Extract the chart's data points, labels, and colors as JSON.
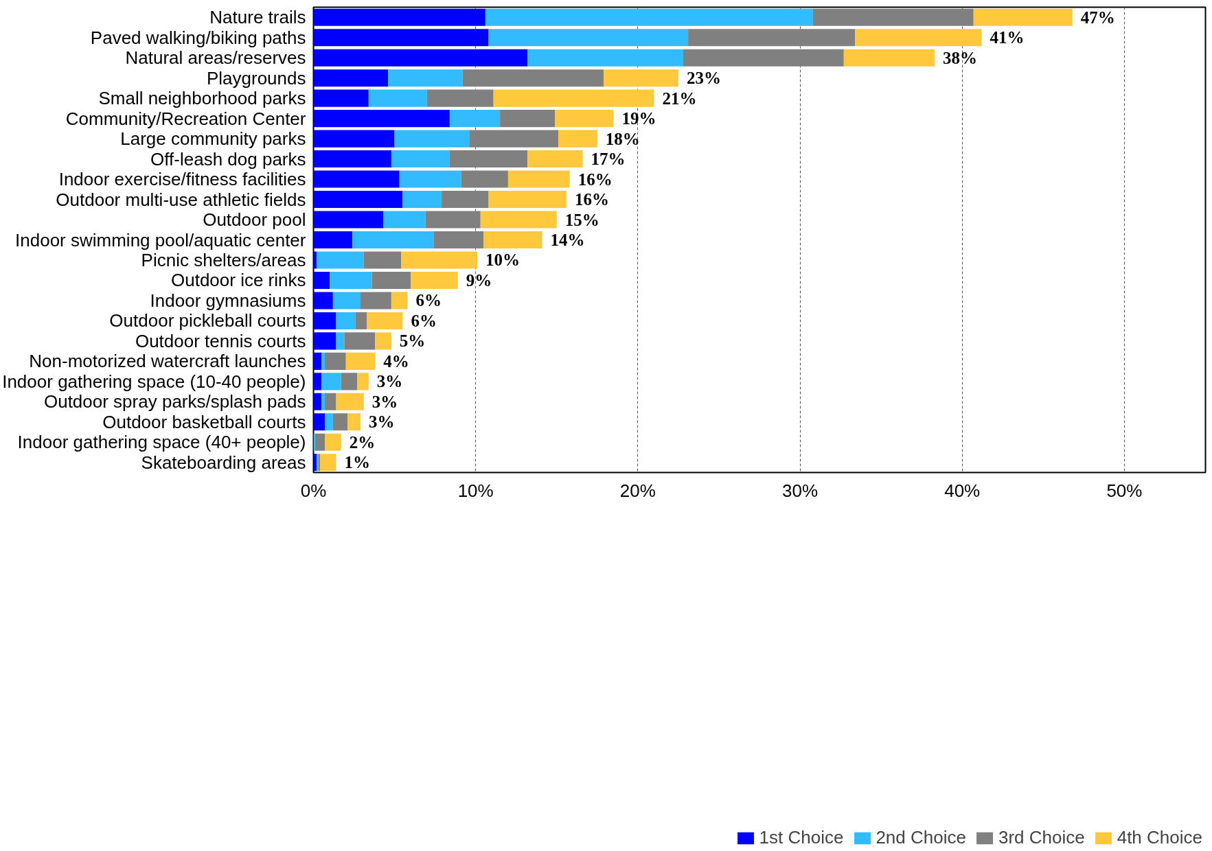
{
  "chart_data": {
    "type": "bar",
    "orientation": "horizontal",
    "stacked": true,
    "categories": [
      "Nature trails",
      "Paved walking/biking paths",
      "Natural areas/reserves",
      "Playgrounds",
      "Small neighborhood parks",
      "Community/Recreation Center",
      "Large community parks",
      "Off-leash dog parks",
      "Indoor exercise/fitness facilities",
      "Outdoor multi-use athletic fields",
      "Outdoor pool",
      "Indoor swimming pool/aquatic center",
      "Picnic shelters/areas",
      "Outdoor ice rinks",
      "Indoor gymnasiums",
      "Outdoor pickleball courts",
      "Outdoor tennis courts",
      "Non-motorized watercraft launches",
      "Indoor gathering space (10-40 people)",
      "Outdoor spray parks/splash pads",
      "Outdoor basketball courts",
      "Indoor gathering space (40+ people)",
      "Skateboarding areas"
    ],
    "series": [
      {
        "name": "1st Choice",
        "color": "#0000ff",
        "values": [
          10.6,
          10.8,
          13.2,
          4.6,
          3.4,
          8.4,
          5.0,
          4.8,
          5.3,
          5.5,
          4.3,
          2.4,
          0.2,
          1.0,
          1.2,
          1.4,
          1.4,
          0.5,
          0.5,
          0.5,
          0.7,
          0.0,
          0.2
        ]
      },
      {
        "name": "2nd Choice",
        "color": "#33bbff",
        "values": [
          20.2,
          12.3,
          9.6,
          4.6,
          3.6,
          3.1,
          4.6,
          3.6,
          3.8,
          2.4,
          2.6,
          5.0,
          2.9,
          2.6,
          1.7,
          1.2,
          0.5,
          0.2,
          1.2,
          0.2,
          0.5,
          0.1,
          0.1
        ]
      },
      {
        "name": "3rd Choice",
        "color": "#808080",
        "values": [
          9.9,
          10.3,
          9.9,
          8.7,
          4.1,
          3.4,
          5.5,
          4.8,
          2.9,
          2.9,
          3.4,
          3.1,
          2.3,
          2.4,
          1.9,
          0.7,
          1.9,
          1.3,
          1.0,
          0.7,
          0.9,
          0.6,
          0.1
        ]
      },
      {
        "name": "4th Choice",
        "color": "#ffc83d",
        "values": [
          6.1,
          7.8,
          5.6,
          4.6,
          9.9,
          3.6,
          2.4,
          3.4,
          3.8,
          4.8,
          4.7,
          3.6,
          4.7,
          2.9,
          1.0,
          2.2,
          1.0,
          1.8,
          0.7,
          1.7,
          0.8,
          1.0,
          1.0
        ]
      }
    ],
    "totals": [
      "47%",
      "41%",
      "38%",
      "23%",
      "21%",
      "19%",
      "18%",
      "17%",
      "16%",
      "16%",
      "15%",
      "14%",
      "10%",
      "9%",
      "6%",
      "6%",
      "5%",
      "4%",
      "3%",
      "3%",
      "3%",
      "2%",
      "1%"
    ],
    "xlim": [
      0,
      55
    ],
    "xticks": [
      {
        "value": 0,
        "label": "0%"
      },
      {
        "value": 10,
        "label": "10%"
      },
      {
        "value": 20,
        "label": "20%"
      },
      {
        "value": 30,
        "label": "30%"
      },
      {
        "value": 40,
        "label": "40%"
      },
      {
        "value": 50,
        "label": "50%"
      }
    ],
    "grid": "x",
    "legend": "bottom right"
  }
}
